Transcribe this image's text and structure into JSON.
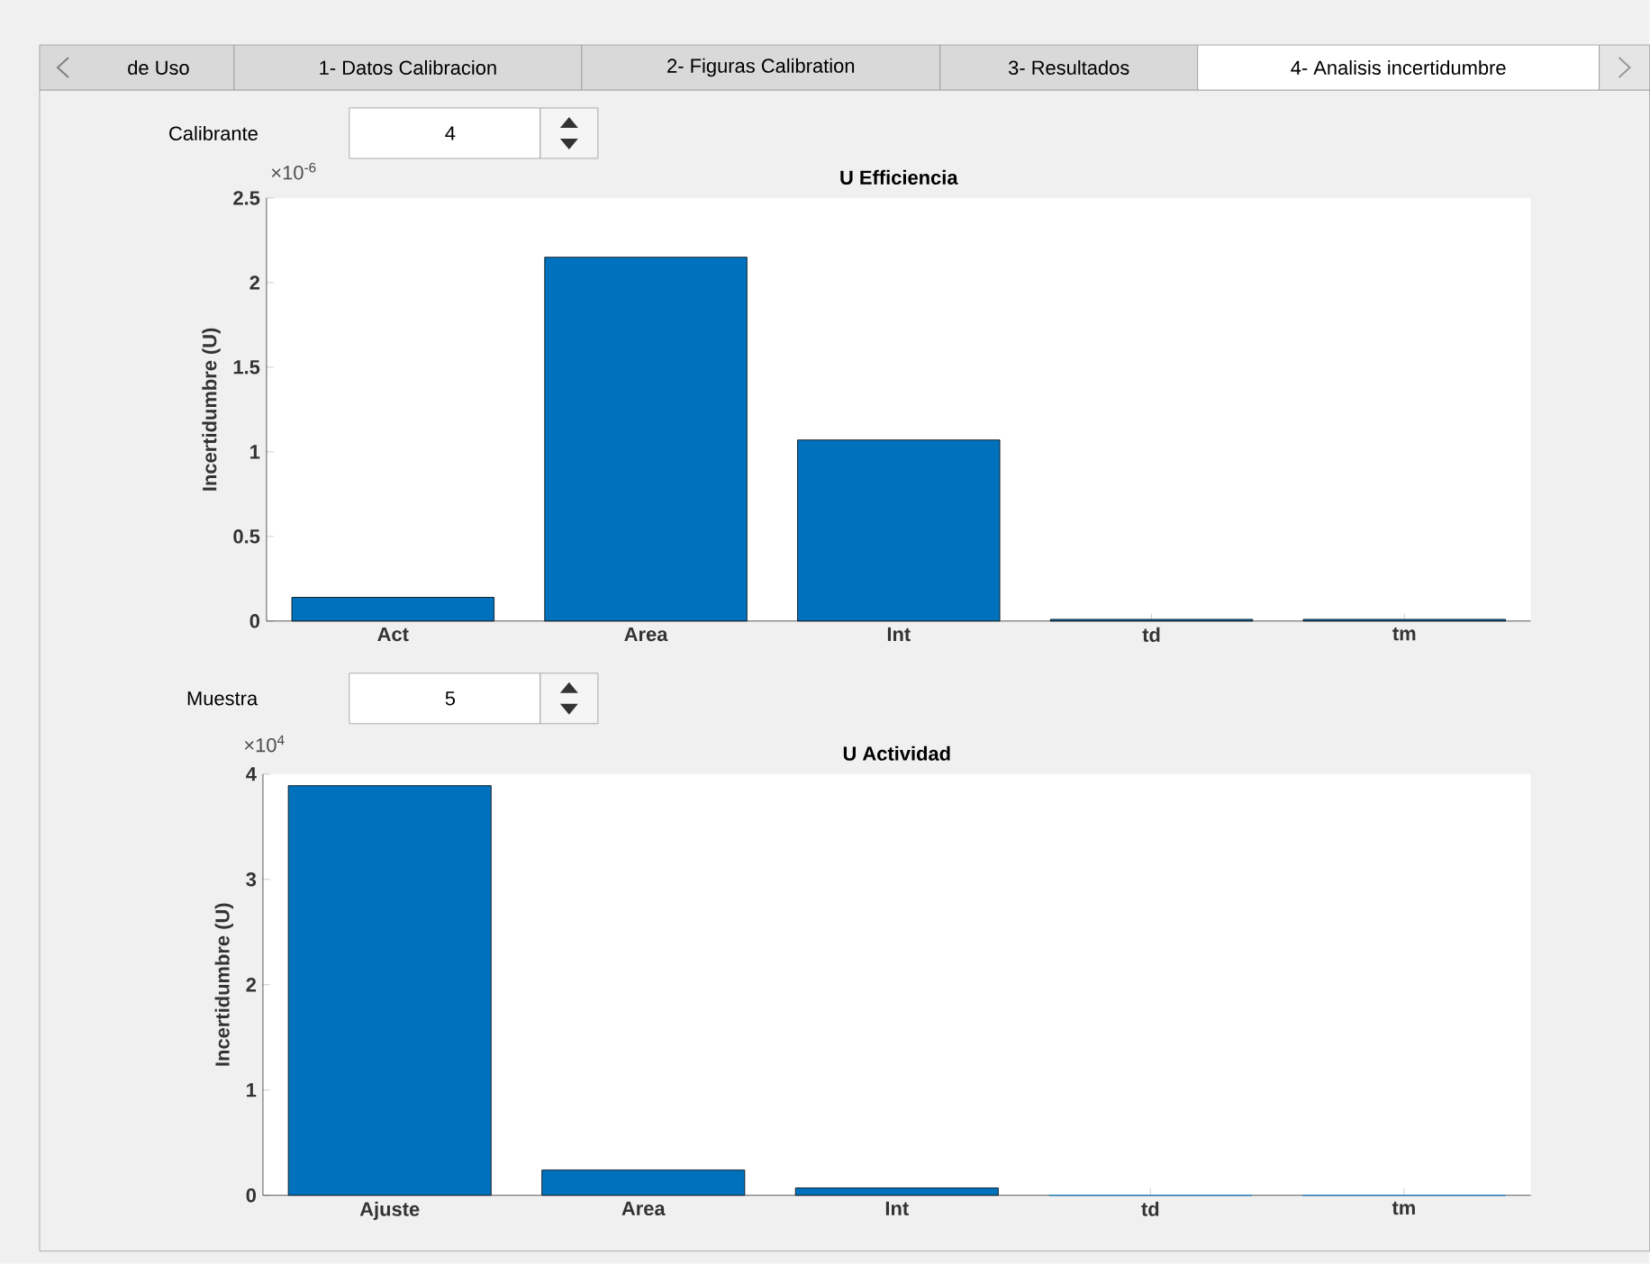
{
  "chart_data": [
    {
      "type": "bar",
      "title": "U Efficiencia",
      "ylabel": "Incertidumbre (U)",
      "categories": [
        "Act",
        "Area",
        "Int",
        "td",
        "tm"
      ],
      "values": [
        0.14,
        2.15,
        1.07,
        0.01,
        0.01
      ],
      "color": "#0072bd",
      "ylim": [
        0,
        2.5
      ],
      "yticks": [
        0,
        0.5,
        1,
        1.5,
        2,
        2.5
      ],
      "annotations": [
        "×10$^{-6}$",
        "Calibrante",
        "4",
        "de Uso",
        "1- Datos Calibracion",
        "2- Figuras Calibration",
        "3- Resultados",
        "4- Analisis incertidumbre"
      ]
    },
    {
      "type": "bar",
      "title": "U Actividad",
      "ylabel": "Incertidumbre (U)",
      "categories": [
        "Ajuste",
        "Area",
        "Int",
        "td",
        "tm"
      ],
      "values": [
        3.89,
        0.24,
        0.07,
        0,
        0
      ],
      "color": "#0072bd",
      "ylim": [
        0,
        4
      ],
      "yticks": [
        0,
        1,
        2,
        3,
        4
      ],
      "annotations": [
        "×10$^{4}$",
        "Muestra",
        "5"
      ]
    }
  ]
}
